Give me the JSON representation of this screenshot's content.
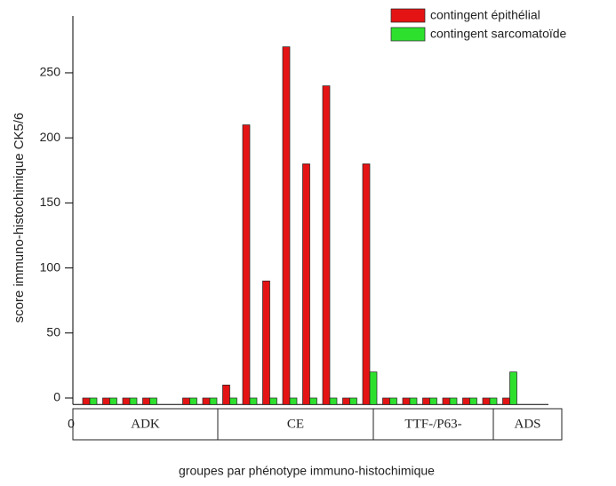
{
  "chart_data": {
    "type": "bar",
    "ylabel": "score immuno-histochimique CK5/6",
    "xlabel": "groupes par phénotype immuno-histochimique",
    "x_origin_label": "0",
    "categories": [
      null,
      null,
      null,
      null,
      null,
      null,
      null,
      null,
      null,
      null,
      null,
      null,
      null,
      null,
      null,
      null,
      null,
      null,
      null,
      null,
      null,
      null
    ],
    "groups": [
      "ADK",
      "CE",
      "TTF-/P63-",
      "ADS"
    ],
    "series": [
      {
        "name": "contingent épithélial",
        "color": "#e41414",
        "values": [
          0,
          0,
          0,
          0,
          null,
          0,
          0,
          10,
          210,
          90,
          270,
          180,
          240,
          0,
          180,
          0,
          0,
          0,
          0,
          0,
          0,
          0
        ]
      },
      {
        "name": "contingent sarcomatoïde",
        "color": "#2ee02e",
        "values": [
          0,
          0,
          0,
          0,
          null,
          0,
          0,
          0,
          0,
          0,
          0,
          0,
          0,
          0,
          20,
          0,
          0,
          0,
          0,
          0,
          0,
          20
        ]
      }
    ],
    "ylim": [
      -5,
      290
    ],
    "yticks": [
      0,
      50,
      100,
      150,
      200,
      250
    ],
    "legend": "upper right"
  }
}
